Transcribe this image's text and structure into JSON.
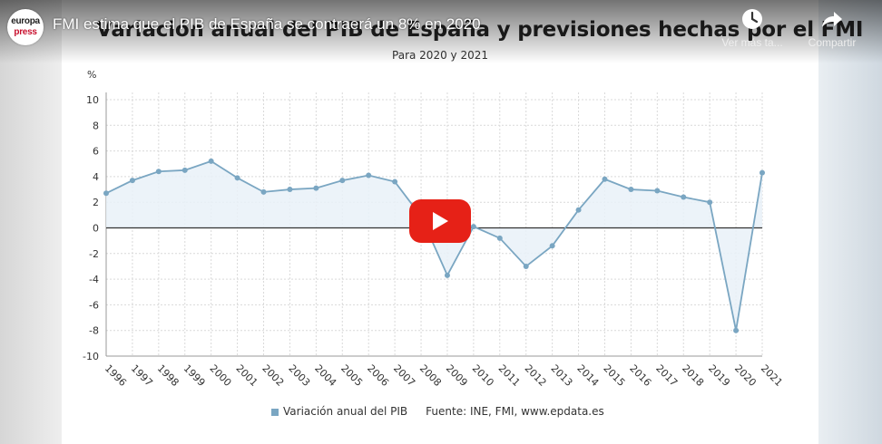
{
  "video": {
    "title": "FMI estima que el PIB de España se contraerá un 8% en 2020",
    "channel_logo_top": "europa",
    "channel_logo_bottom": "press",
    "watch_later_label": "Ver más ta...",
    "share_label": "Compartir",
    "play_color": "#e62117"
  },
  "chart": {
    "title": "Variación anual del PIB de España y previsiones hechas por el FMI",
    "subtitle": "Para 2020 y 2021",
    "y_unit": "%",
    "legend_label": "Variación anual del PIB",
    "source": "Fuente: INE, FMI, www.epdata.es",
    "series_color": "#7aa6c2"
  },
  "chart_data": {
    "type": "area",
    "title": "Variación anual del PIB de España y previsiones hechas por el FMI",
    "subtitle": "Para 2020 y 2021",
    "ylabel": "%",
    "ylim": [
      -10,
      10
    ],
    "yticks": [
      10,
      8,
      6,
      4,
      2,
      0,
      -2,
      -4,
      -6,
      -8,
      -10
    ],
    "grid": true,
    "legend_placement": "bottom",
    "categories": [
      "1996",
      "1997",
      "1998",
      "1999",
      "2000",
      "2001",
      "2002",
      "2003",
      "2004",
      "2005",
      "2006",
      "2007",
      "2008",
      "2009",
      "2010",
      "2011",
      "2012",
      "2013",
      "2014",
      "2015",
      "2016",
      "2017",
      "2018",
      "2019",
      "2020",
      "2021"
    ],
    "series": [
      {
        "name": "Variación anual del PIB",
        "values": [
          2.7,
          3.7,
          4.4,
          4.5,
          5.2,
          3.9,
          2.8,
          3.0,
          3.1,
          3.7,
          4.1,
          3.6,
          0.9,
          -3.7,
          0.1,
          -0.8,
          -3.0,
          -1.4,
          1.4,
          3.8,
          3.0,
          2.9,
          2.4,
          2.0,
          -8.0,
          4.3
        ]
      }
    ]
  }
}
